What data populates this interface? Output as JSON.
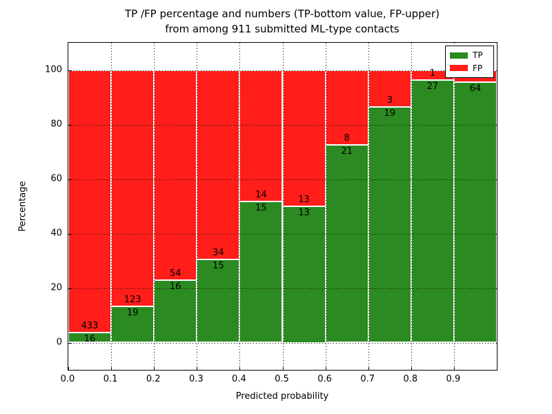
{
  "title": {
    "line1": "TP /FP percentage and numbers (TP-bottom value, FP-upper)",
    "line2": "from among 911 submitted ML-type contacts"
  },
  "chart_data": {
    "type": "bar",
    "stacked": true,
    "title": "TP /FP percentage and numbers (TP-bottom value, FP-upper) from among 911 submitted ML-type contacts",
    "xlabel": "Predicted probability",
    "ylabel": "Percentage",
    "total_contacts": 911,
    "xlim": [
      0.0,
      1.0
    ],
    "ylim": [
      -10,
      110
    ],
    "x_ticks": [
      "0.0",
      "0.1",
      "0.2",
      "0.3",
      "0.4",
      "0.5",
      "0.6",
      "0.7",
      "0.8",
      "0.9"
    ],
    "y_ticks": [
      0,
      20,
      40,
      60,
      80,
      100
    ],
    "grid": "dotted",
    "legend_position": "upper-right",
    "legend": [
      {
        "label": "TP",
        "color": "#2b8a21"
      },
      {
        "label": "FP",
        "color": "#ff1e1a"
      }
    ],
    "bin_width": 0.1,
    "bins": [
      {
        "range": [
          0.0,
          0.1
        ],
        "tp": 16,
        "fp": 433,
        "tp_label": "16",
        "fp_label": "433"
      },
      {
        "range": [
          0.1,
          0.2
        ],
        "tp": 19,
        "fp": 123,
        "tp_label": "19",
        "fp_label": "123"
      },
      {
        "range": [
          0.2,
          0.3
        ],
        "tp": 16,
        "fp": 54,
        "tp_label": "16",
        "fp_label": "54"
      },
      {
        "range": [
          0.3,
          0.4
        ],
        "tp": 15,
        "fp": 34,
        "tp_label": "15",
        "fp_label": "34"
      },
      {
        "range": [
          0.4,
          0.5
        ],
        "tp": 15,
        "fp": 14,
        "tp_label": "15",
        "fp_label": "14"
      },
      {
        "range": [
          0.5,
          0.6
        ],
        "tp": 13,
        "fp": 13,
        "tp_label": "13",
        "fp_label": "13"
      },
      {
        "range": [
          0.6,
          0.7
        ],
        "tp": 21,
        "fp": 8,
        "tp_label": "21",
        "fp_label": "8"
      },
      {
        "range": [
          0.7,
          0.8
        ],
        "tp": 19,
        "fp": 3,
        "tp_label": "19",
        "fp_label": "3"
      },
      {
        "range": [
          0.8,
          0.9
        ],
        "tp": 27,
        "fp": 1,
        "tp_label": "27",
        "fp_label": "1"
      },
      {
        "range": [
          0.9,
          1.0
        ],
        "tp": 64,
        "fp": 3,
        "tp_label": "64",
        "fp_label": ""
      }
    ]
  }
}
